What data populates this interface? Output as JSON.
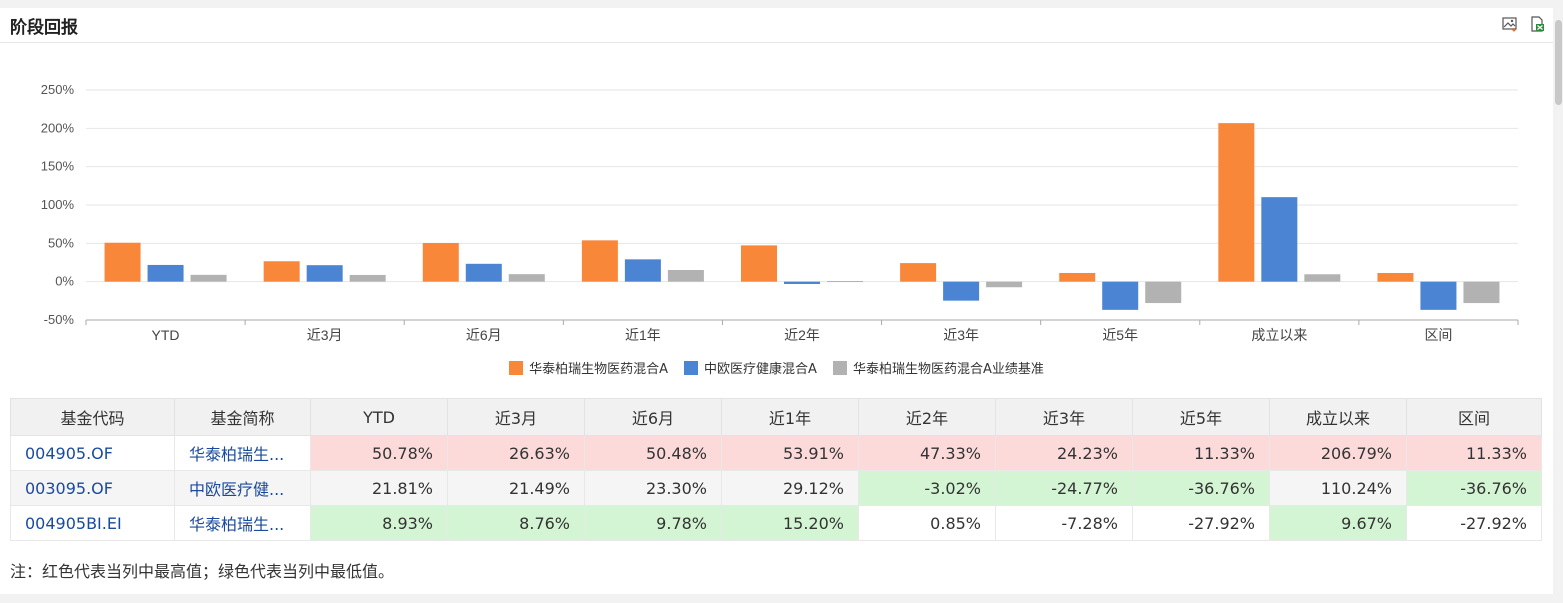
{
  "header": {
    "title": "阶段回报"
  },
  "chart_data": {
    "type": "bar",
    "categories": [
      "YTD",
      "近3月",
      "近6月",
      "近1年",
      "近2年",
      "近3年",
      "近5年",
      "成立以来",
      "区间"
    ],
    "ylim": [
      -50,
      250
    ],
    "yticks": [
      "250%",
      "200%",
      "150%",
      "100%",
      "50%",
      "0%",
      "-50%"
    ],
    "series": [
      {
        "name": "华泰柏瑞生物医药混合A",
        "color": "#f9873a",
        "values": [
          50.78,
          26.63,
          50.48,
          53.91,
          47.33,
          24.23,
          11.33,
          206.79,
          11.33
        ]
      },
      {
        "name": "中欧医疗健康混合A",
        "color": "#4a84d2",
        "values": [
          21.81,
          21.49,
          23.3,
          29.12,
          -3.02,
          -24.77,
          -36.76,
          110.24,
          -36.76
        ]
      },
      {
        "name": "华泰柏瑞生物医药混合A业绩基准",
        "color": "#b2b2b2",
        "values": [
          8.93,
          8.76,
          9.78,
          15.2,
          0.85,
          -7.28,
          -27.92,
          9.67,
          -27.92
        ]
      }
    ]
  },
  "table": {
    "headers": [
      "基金代码",
      "基金简称",
      "YTD",
      "近3月",
      "近6月",
      "近1年",
      "近2年",
      "近3年",
      "近5年",
      "成立以来",
      "区间"
    ],
    "rows": [
      {
        "code": "004905.OF",
        "name": "华泰柏瑞生...",
        "values": [
          "50.78%",
          "26.63%",
          "50.48%",
          "53.91%",
          "47.33%",
          "24.23%",
          "11.33%",
          "206.79%",
          "11.33%"
        ],
        "marks": [
          "hi",
          "hi",
          "hi",
          "hi",
          "hi",
          "hi",
          "hi",
          "hi",
          "hi"
        ]
      },
      {
        "code": "003095.OF",
        "name": "中欧医疗健...",
        "values": [
          "21.81%",
          "21.49%",
          "23.30%",
          "29.12%",
          "-3.02%",
          "-24.77%",
          "-36.76%",
          "110.24%",
          "-36.76%"
        ],
        "marks": [
          "",
          "",
          "",
          "",
          "lo",
          "lo",
          "lo",
          "",
          "lo"
        ]
      },
      {
        "code": "004905BI.EI",
        "name": "华泰柏瑞生...",
        "values": [
          "8.93%",
          "8.76%",
          "9.78%",
          "15.20%",
          "0.85%",
          "-7.28%",
          "-27.92%",
          "9.67%",
          "-27.92%"
        ],
        "marks": [
          "lo",
          "lo",
          "lo",
          "lo",
          "",
          "",
          "",
          "lo",
          ""
        ]
      }
    ]
  },
  "note": "注：红色代表当列中最高值；绿色代表当列中最低值。"
}
